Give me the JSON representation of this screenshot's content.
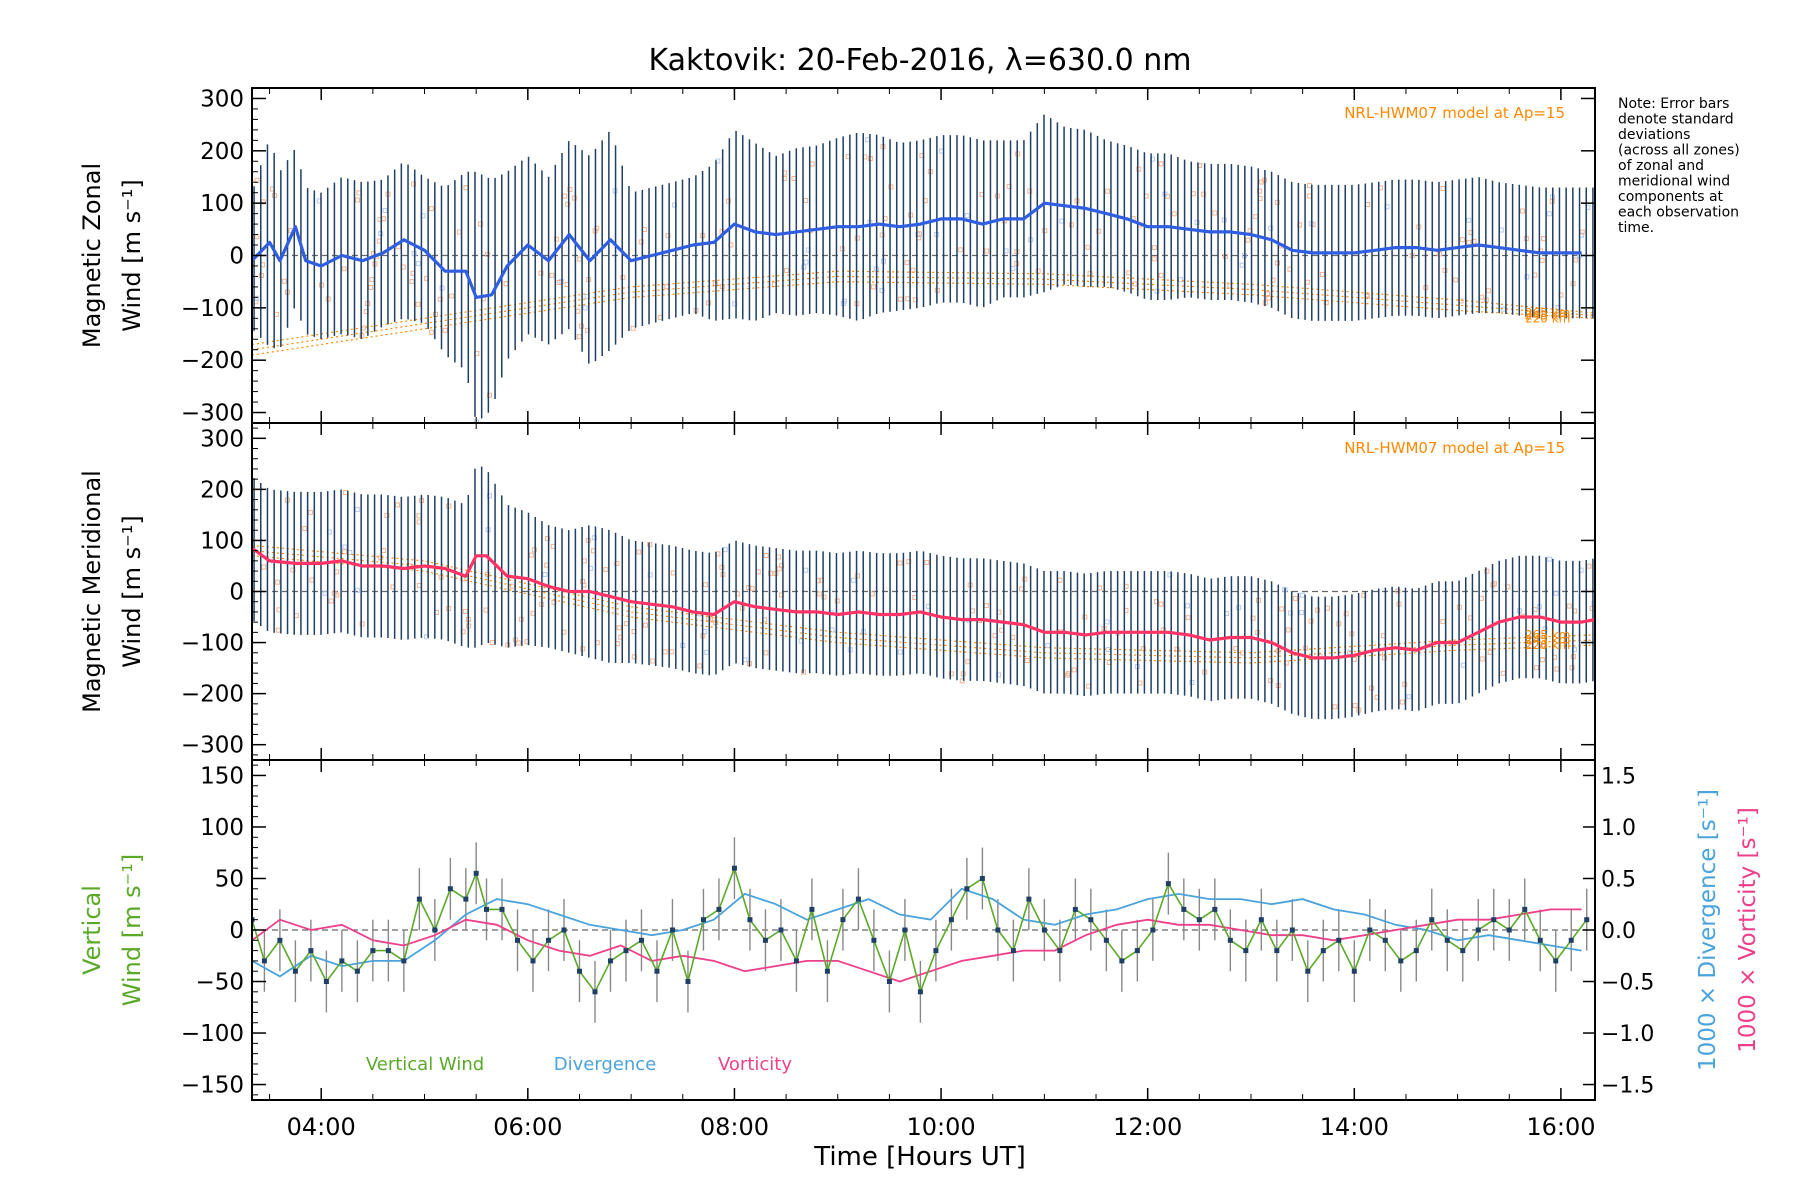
{
  "title": "Kaktovik: 20-Feb-2016, λ=630.0 nm",
  "note": [
    "Note: Error bars",
    "denote standard",
    "deviations",
    "(across all zones)",
    "of zonal and",
    "meridional wind",
    "components at",
    "each observation",
    "time."
  ],
  "colors": {
    "zonal": "#2f5fe0",
    "meridional": "#ff3366",
    "vertical": "#5aaa28",
    "divergence": "#4aa3dc",
    "vorticity": "#ee3f8a",
    "errorbar": "#1f3f66",
    "model": "#ff8800",
    "scatter": "#f7b48c"
  },
  "chart_data": [
    {
      "type": "line",
      "ylabel": [
        "Magnetic Zonal",
        "Wind [m s⁻¹]"
      ],
      "ylim": [
        -320,
        320
      ],
      "yticks": [
        -300,
        -200,
        -100,
        0,
        100,
        200,
        300
      ],
      "annotation": "NRL-HWM07 model at Ap=15",
      "model_labels": [
        "265 km",
        "245 km",
        "220 km"
      ],
      "series": [
        {
          "name": "Magnetic Zonal Wind",
          "x": [
            3.33,
            3.5,
            3.6,
            3.75,
            3.85,
            4.0,
            4.2,
            4.4,
            4.6,
            4.8,
            5.0,
            5.2,
            5.4,
            5.5,
            5.65,
            5.8,
            6.0,
            6.2,
            6.4,
            6.6,
            6.8,
            7.0,
            7.2,
            7.4,
            7.6,
            7.8,
            8.0,
            8.2,
            8.4,
            8.6,
            8.8,
            9.0,
            9.2,
            9.4,
            9.6,
            9.8,
            10.0,
            10.2,
            10.4,
            10.6,
            10.8,
            11.0,
            11.2,
            11.4,
            11.6,
            11.8,
            12.0,
            12.2,
            12.4,
            12.6,
            12.8,
            13.0,
            13.2,
            13.4,
            13.6,
            13.8,
            14.0,
            14.2,
            14.4,
            14.6,
            14.8,
            15.0,
            15.2,
            15.4,
            15.6,
            15.8,
            16.0,
            16.2
          ],
          "y": [
            -10,
            25,
            -10,
            55,
            -10,
            -20,
            0,
            -10,
            5,
            30,
            10,
            -30,
            -30,
            -80,
            -75,
            -20,
            20,
            -10,
            40,
            -10,
            30,
            -10,
            0,
            10,
            20,
            25,
            60,
            45,
            40,
            45,
            50,
            55,
            55,
            60,
            55,
            60,
            70,
            70,
            60,
            70,
            70,
            100,
            95,
            90,
            80,
            70,
            55,
            55,
            50,
            45,
            45,
            40,
            30,
            10,
            5,
            5,
            5,
            10,
            15,
            15,
            10,
            15,
            20,
            15,
            10,
            5,
            5,
            5
          ],
          "error": [
            130,
            200,
            170,
            150,
            140,
            140,
            150,
            150,
            140,
            150,
            140,
            160,
            190,
            240,
            220,
            180,
            170,
            160,
            180,
            200,
            210,
            130,
            130,
            130,
            130,
            150,
            180,
            170,
            150,
            160,
            160,
            170,
            180,
            170,
            160,
            160,
            160,
            160,
            160,
            150,
            150,
            170,
            150,
            150,
            140,
            140,
            140,
            140,
            130,
            130,
            130,
            130,
            130,
            130,
            130,
            130,
            130,
            130,
            130,
            130,
            130,
            130,
            130,
            125,
            125,
            125,
            125,
            125
          ]
        },
        {
          "name": "model 265 km",
          "x": [
            3.33,
            5,
            7,
            9,
            11,
            13,
            15,
            16.33
          ],
          "y": [
            -170,
            -120,
            -60,
            -30,
            -35,
            -55,
            -85,
            -110
          ]
        },
        {
          "name": "model 245 km",
          "x": [
            3.33,
            5,
            7,
            9,
            11,
            13,
            15,
            16.33
          ],
          "y": [
            -180,
            -130,
            -70,
            -40,
            -45,
            -65,
            -95,
            -115
          ]
        },
        {
          "name": "model 220 km",
          "x": [
            3.33,
            5,
            7,
            9,
            11,
            13,
            15,
            16.33
          ],
          "y": [
            -190,
            -140,
            -80,
            -50,
            -55,
            -75,
            -105,
            -120
          ]
        }
      ]
    },
    {
      "type": "line",
      "ylabel": [
        "Magnetic Meridional",
        "Wind [m s⁻¹]"
      ],
      "ylim": [
        -330,
        330
      ],
      "yticks": [
        -300,
        -200,
        -100,
        0,
        100,
        200,
        300
      ],
      "annotation": "NRL-HWM07 model at Ap=15",
      "model_labels": [
        "265 km",
        "245 km",
        "220 km"
      ],
      "series": [
        {
          "name": "Magnetic Meridional Wind",
          "x": [
            3.33,
            3.5,
            3.75,
            4.0,
            4.2,
            4.4,
            4.6,
            4.8,
            5.0,
            5.2,
            5.4,
            5.5,
            5.6,
            5.8,
            6.0,
            6.2,
            6.4,
            6.6,
            6.8,
            7.0,
            7.2,
            7.4,
            7.6,
            7.8,
            8.0,
            8.2,
            8.4,
            8.6,
            8.8,
            9.0,
            9.2,
            9.4,
            9.6,
            9.8,
            10.0,
            10.2,
            10.4,
            10.6,
            10.8,
            11.0,
            11.2,
            11.4,
            11.6,
            11.8,
            12.0,
            12.2,
            12.4,
            12.6,
            12.8,
            13.0,
            13.2,
            13.4,
            13.6,
            13.8,
            14.0,
            14.2,
            14.4,
            14.6,
            14.8,
            15.0,
            15.2,
            15.4,
            15.6,
            15.8,
            16.0,
            16.2,
            16.33
          ],
          "y": [
            85,
            60,
            55,
            55,
            60,
            50,
            50,
            45,
            50,
            45,
            30,
            70,
            70,
            30,
            25,
            10,
            0,
            0,
            -10,
            -20,
            -25,
            -30,
            -40,
            -45,
            -20,
            -30,
            -35,
            -40,
            -40,
            -45,
            -40,
            -45,
            -45,
            -40,
            -50,
            -55,
            -55,
            -60,
            -65,
            -80,
            -80,
            -85,
            -80,
            -80,
            -80,
            -80,
            -85,
            -95,
            -90,
            -90,
            -100,
            -120,
            -130,
            -130,
            -125,
            -115,
            -110,
            -115,
            -100,
            -100,
            -80,
            -60,
            -50,
            -50,
            -60,
            -60,
            -55
          ],
          "error": [
            140,
            140,
            140,
            140,
            140,
            140,
            140,
            140,
            140,
            140,
            140,
            180,
            170,
            140,
            130,
            120,
            120,
            130,
            130,
            120,
            120,
            120,
            120,
            120,
            120,
            120,
            120,
            120,
            120,
            120,
            120,
            120,
            120,
            120,
            120,
            120,
            120,
            120,
            120,
            120,
            120,
            120,
            120,
            120,
            120,
            120,
            120,
            120,
            120,
            120,
            120,
            120,
            120,
            120,
            120,
            120,
            120,
            120,
            120,
            120,
            120,
            120,
            120,
            120,
            120,
            120,
            120
          ]
        },
        {
          "name": "model 265 km",
          "x": [
            3.33,
            5,
            7,
            9,
            11,
            13,
            15,
            16.33
          ],
          "y": [
            90,
            60,
            -30,
            -80,
            -110,
            -120,
            -95,
            -85
          ]
        },
        {
          "name": "model 245 km",
          "x": [
            3.33,
            5,
            7,
            9,
            11,
            13,
            15,
            16.33
          ],
          "y": [
            80,
            50,
            -40,
            -90,
            -120,
            -130,
            -105,
            -95
          ]
        },
        {
          "name": "model 220 km",
          "x": [
            3.33,
            5,
            7,
            9,
            11,
            13,
            15,
            16.33
          ],
          "y": [
            70,
            40,
            -50,
            -100,
            -130,
            -140,
            -115,
            -105
          ]
        }
      ]
    },
    {
      "type": "line",
      "ylabel": [
        "Vertical",
        "Wind [m s⁻¹]"
      ],
      "ylim": [
        -165,
        165
      ],
      "yticks": [
        -150,
        -100,
        -50,
        0,
        50,
        100,
        150
      ],
      "y2label": "1000 × Divergence [s⁻¹]",
      "y3label": "1000 × Vorticity [s⁻¹]",
      "y2lim": [
        -1.65,
        1.65
      ],
      "y2ticks": [
        -1.5,
        -1.0,
        -0.5,
        0.0,
        0.5,
        1.0,
        1.5
      ],
      "legend": [
        "Vertical Wind",
        "Divergence",
        "Vorticity"
      ],
      "series": [
        {
          "name": "Vertical Wind",
          "x": [
            3.33,
            3.45,
            3.6,
            3.75,
            3.9,
            4.05,
            4.2,
            4.35,
            4.5,
            4.65,
            4.8,
            4.95,
            5.1,
            5.25,
            5.4,
            5.5,
            5.6,
            5.75,
            5.9,
            6.05,
            6.2,
            6.35,
            6.5,
            6.65,
            6.8,
            6.95,
            7.1,
            7.25,
            7.4,
            7.55,
            7.7,
            7.85,
            8.0,
            8.15,
            8.3,
            8.45,
            8.6,
            8.75,
            8.9,
            9.05,
            9.2,
            9.35,
            9.5,
            9.65,
            9.8,
            9.95,
            10.1,
            10.25,
            10.4,
            10.55,
            10.7,
            10.85,
            11.0,
            11.15,
            11.3,
            11.45,
            11.6,
            11.75,
            11.9,
            12.05,
            12.2,
            12.35,
            12.5,
            12.65,
            12.8,
            12.95,
            13.1,
            13.25,
            13.4,
            13.55,
            13.7,
            13.85,
            14.0,
            14.15,
            14.3,
            14.45,
            14.6,
            14.75,
            14.9,
            15.05,
            15.2,
            15.35,
            15.5,
            15.65,
            15.8,
            15.95,
            16.1,
            16.25
          ],
          "y": [
            10,
            -30,
            -10,
            -40,
            -20,
            -50,
            -30,
            -40,
            -20,
            -20,
            -30,
            30,
            0,
            40,
            30,
            55,
            20,
            20,
            -10,
            -30,
            -10,
            0,
            -40,
            -60,
            -30,
            -20,
            -10,
            -40,
            0,
            -50,
            10,
            20,
            60,
            10,
            -10,
            0,
            -30,
            20,
            -40,
            10,
            30,
            -10,
            -50,
            0,
            -60,
            -20,
            10,
            40,
            50,
            0,
            -20,
            30,
            0,
            -20,
            20,
            10,
            -10,
            -30,
            -20,
            0,
            45,
            20,
            10,
            20,
            -10,
            -20,
            10,
            -20,
            0,
            -40,
            -20,
            -10,
            -40,
            0,
            -10,
            -30,
            -20,
            10,
            -10,
            -20,
            0,
            10,
            0,
            20,
            -10,
            -30,
            -10,
            10
          ],
          "error": [
            30,
            30,
            30,
            30,
            30,
            30,
            30,
            30,
            30,
            30,
            30,
            30,
            30,
            30,
            30,
            30,
            30,
            30,
            30,
            30,
            30,
            30,
            30,
            30,
            30,
            30,
            30,
            30,
            30,
            30,
            30,
            30,
            30,
            30,
            30,
            30,
            30,
            30,
            30,
            30,
            30,
            30,
            30,
            30,
            30,
            30,
            30,
            30,
            30,
            30,
            30,
            30,
            30,
            30,
            30,
            30,
            30,
            30,
            30,
            30,
            30,
            30,
            30,
            30,
            30,
            30,
            30,
            30,
            30,
            30,
            30,
            30,
            30,
            30,
            30,
            30,
            30,
            30,
            30,
            30,
            30,
            30,
            30,
            30,
            30,
            30,
            30,
            30
          ]
        },
        {
          "name": "Divergence",
          "x": [
            3.33,
            3.6,
            3.9,
            4.2,
            4.5,
            4.8,
            5.1,
            5.4,
            5.7,
            6.0,
            6.3,
            6.6,
            6.9,
            7.2,
            7.5,
            7.8,
            8.1,
            8.4,
            8.7,
            9.0,
            9.3,
            9.6,
            9.9,
            10.2,
            10.5,
            10.8,
            11.1,
            11.4,
            11.7,
            12.0,
            12.3,
            12.6,
            12.9,
            13.2,
            13.5,
            13.8,
            14.1,
            14.4,
            14.7,
            15.0,
            15.3,
            15.6,
            15.9,
            16.2
          ],
          "y": [
            -0.3,
            -0.45,
            -0.25,
            -0.35,
            -0.3,
            -0.3,
            -0.1,
            0.15,
            0.3,
            0.25,
            0.15,
            0.05,
            0.0,
            -0.05,
            0.0,
            0.1,
            0.35,
            0.25,
            0.1,
            0.2,
            0.3,
            0.15,
            0.1,
            0.4,
            0.3,
            0.1,
            0.05,
            0.15,
            0.2,
            0.3,
            0.35,
            0.3,
            0.3,
            0.25,
            0.3,
            0.2,
            0.15,
            0.05,
            0.0,
            -0.1,
            -0.05,
            -0.1,
            -0.15,
            -0.2
          ]
        },
        {
          "name": "Vorticity",
          "x": [
            3.33,
            3.6,
            3.9,
            4.2,
            4.5,
            4.8,
            5.1,
            5.4,
            5.7,
            6.0,
            6.3,
            6.6,
            6.9,
            7.2,
            7.5,
            7.8,
            8.1,
            8.4,
            8.7,
            9.0,
            9.3,
            9.6,
            9.9,
            10.2,
            10.5,
            10.8,
            11.1,
            11.4,
            11.7,
            12.0,
            12.3,
            12.6,
            12.9,
            13.2,
            13.5,
            13.8,
            14.1,
            14.4,
            14.7,
            15.0,
            15.3,
            15.6,
            15.9,
            16.2
          ],
          "y": [
            -0.1,
            0.1,
            0.0,
            0.05,
            -0.1,
            -0.15,
            -0.05,
            0.1,
            0.05,
            -0.1,
            -0.2,
            -0.25,
            -0.15,
            -0.3,
            -0.25,
            -0.3,
            -0.4,
            -0.35,
            -0.3,
            -0.3,
            -0.4,
            -0.5,
            -0.4,
            -0.3,
            -0.25,
            -0.2,
            -0.2,
            -0.05,
            0.05,
            0.1,
            0.05,
            0.05,
            0.0,
            -0.05,
            -0.05,
            -0.1,
            -0.05,
            0.0,
            0.05,
            0.1,
            0.1,
            0.15,
            0.2,
            0.2
          ]
        }
      ]
    }
  ],
  "xaxis": {
    "label": "Time [Hours UT]",
    "xlim": [
      3.33,
      16.33
    ],
    "ticks": [
      4,
      6,
      8,
      10,
      12,
      14,
      16
    ],
    "ticklabels": [
      "04:00",
      "06:00",
      "08:00",
      "10:00",
      "12:00",
      "14:00",
      "16:00"
    ]
  }
}
